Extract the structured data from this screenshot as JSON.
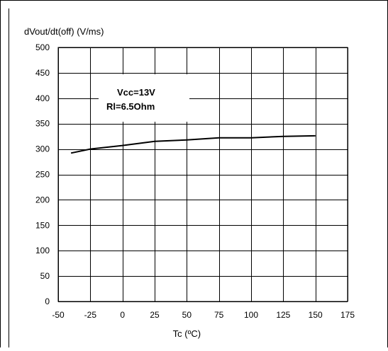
{
  "chart_data": {
    "type": "line",
    "ylabel": "dVout/dt(off) (V/ms)",
    "xlabel": "Tc (ºC)",
    "xlim": [
      -50,
      175
    ],
    "ylim": [
      0,
      500
    ],
    "xticks": [
      -50,
      -25,
      0,
      25,
      50,
      75,
      100,
      125,
      150,
      175
    ],
    "yticks": [
      0,
      50,
      100,
      150,
      200,
      250,
      300,
      350,
      400,
      450,
      500
    ],
    "xtick_labels": [
      "-50",
      "-25",
      "0",
      "25",
      "50",
      "75",
      "100",
      "125",
      "150",
      "175"
    ],
    "ytick_labels": [
      "0",
      "50",
      "100",
      "150",
      "200",
      "250",
      "300",
      "350",
      "400",
      "450",
      "500"
    ],
    "grid": true,
    "annotations": [
      "Vcc=13V",
      "Rl=6.5Ohm"
    ],
    "series": [
      {
        "x": [
          -40,
          -25,
          0,
          25,
          50,
          75,
          100,
          125,
          150
        ],
        "y": [
          292,
          300,
          307,
          315,
          318,
          322,
          322,
          325,
          326
        ]
      }
    ],
    "line_color": "#000000",
    "grid_color": "#000000"
  }
}
